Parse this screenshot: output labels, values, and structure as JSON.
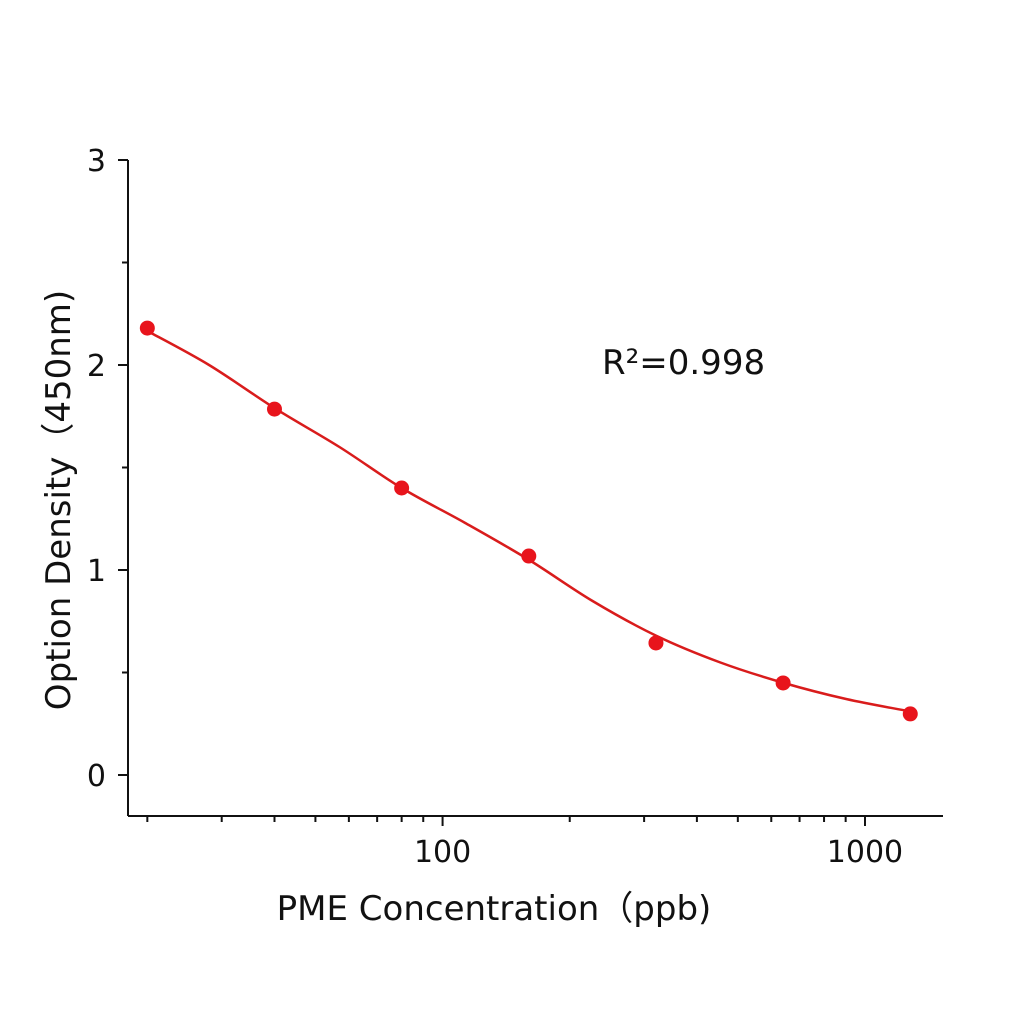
{
  "chart_data": {
    "type": "scatter",
    "x_label": "PME Concentration（ppb)",
    "y_label": "Option Density（450nm)",
    "annotation": "R²=0.998",
    "x": [
      20,
      40,
      80,
      160,
      320,
      640,
      1280
    ],
    "values": [
      2.18,
      1.785,
      1.4,
      1.068,
      0.644,
      0.449,
      0.298
    ],
    "color": "#e8141c",
    "fit": {
      "x": [
        20,
        28,
        40,
        57,
        80,
        113,
        160,
        226,
        320,
        453,
        640,
        905,
        1280
      ],
      "values": [
        2.166,
        2.0,
        1.79,
        1.6,
        1.4,
        1.23,
        1.05,
        0.85,
        0.68,
        0.55,
        0.45,
        0.37,
        0.31
      ],
      "color": "#d91c1c"
    },
    "xscale": "log",
    "xlim": [
      18,
      1530
    ],
    "xticks": [
      100,
      1000
    ],
    "xminorticks": [
      20,
      30,
      40,
      50,
      60,
      70,
      80,
      90,
      200,
      300,
      400,
      500,
      600,
      700,
      800,
      900
    ],
    "ylim": [
      -0.2,
      3
    ],
    "yticks": [
      0,
      1,
      2,
      3
    ],
    "yminorticks": [
      0.5,
      1.5,
      2.5
    ]
  }
}
